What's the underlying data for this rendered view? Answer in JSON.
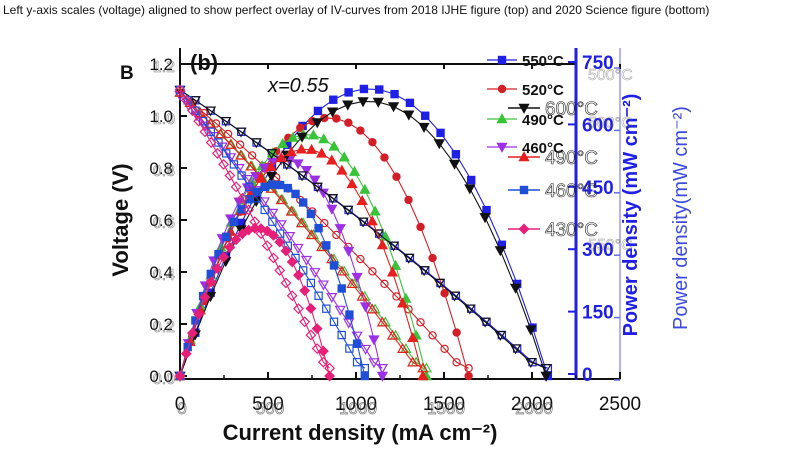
{
  "caption": "Left y-axis scales (voltage) aligned to show perfect overlay of IV-curves from 2018 IJHE figure (top) and 2020 Science figure (bottom)",
  "chart_data": {
    "type": "line",
    "panel_letters": [
      "B",
      "(b)"
    ],
    "annotation": "x=0.55",
    "xlabel": "Current density (mA cm⁻²)",
    "ylabel_left": "Voltage (V)",
    "ylabel_right_inner": "Power density (mW cm⁻²)",
    "ylabel_right_outer": "Power density(mW cm⁻²)",
    "xlim": [
      0,
      2500
    ],
    "ylim_voltage": [
      0,
      1.2
    ],
    "ylim_power": [
      0,
      750
    ],
    "x_ticks": [
      "0",
      "500",
      "1000",
      "1500",
      "2000",
      "2500"
    ],
    "x_ticks_ghost": [
      "0",
      "500",
      "1000",
      "1500",
      "2000"
    ],
    "y_ticks_voltage": [
      "0.0",
      "0.2",
      "0.4",
      "0.6",
      "0.8",
      "1.0",
      "1.2"
    ],
    "y_ticks_power": [
      "0",
      "150",
      "300",
      "450",
      "600",
      "750"
    ],
    "legend_a": [
      "550°C",
      "520°C",
      "490°C",
      "460°C"
    ],
    "legend_b": [
      "600°C",
      "490°C",
      "460°C",
      "430°C"
    ],
    "legend_ghost": [
      "500°C",
      "500°C",
      "550°C"
    ],
    "series": [
      {
        "name": "550°C",
        "color": "#1f1fe6",
        "marker": "square",
        "ocv": 1.1,
        "imax": 2090,
        "pmax": 690
      },
      {
        "name": "520°C",
        "color": "#d31f28",
        "marker": "circle",
        "ocv": 1.09,
        "imax": 1640,
        "pmax": 620
      },
      {
        "name": "490°C",
        "color": "#39c339",
        "marker": "triangle-up",
        "ocv": 1.09,
        "imax": 1400,
        "pmax": 580
      },
      {
        "name": "460°C",
        "color": "#9b30e6",
        "marker": "triangle-down",
        "ocv": 1.08,
        "imax": 1150,
        "pmax": 520
      },
      {
        "name": "600°C",
        "color": "#111111",
        "marker": "triangle-down",
        "ocv": 1.1,
        "imax": 2080,
        "pmax": 660
      },
      {
        "name": "490°C",
        "color": "#e61f1f",
        "marker": "triangle-up",
        "ocv": 1.09,
        "imax": 1380,
        "pmax": 545
      },
      {
        "name": "460°C",
        "color": "#1f4fd6",
        "marker": "square",
        "ocv": 1.1,
        "imax": 1050,
        "pmax": 460
      },
      {
        "name": "430°C",
        "color": "#e61f78",
        "marker": "diamond",
        "ocv": 1.1,
        "imax": 850,
        "pmax": 355
      }
    ]
  }
}
